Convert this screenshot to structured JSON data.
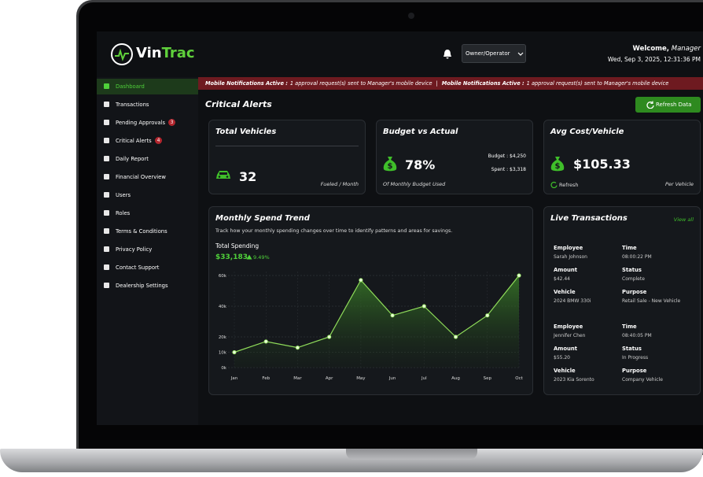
{
  "header": {
    "brand_first": "Vin",
    "brand_second": "Trac",
    "role_select": "Owner/Operator",
    "welcome": "Welcome,",
    "user_role": "Manager",
    "datetime": "Wed, Sep 3, 2025, 12:31:36 PM"
  },
  "sidebar": {
    "items": [
      {
        "label": "Dashboard"
      },
      {
        "label": "Transactions"
      },
      {
        "label": "Pending Approvals",
        "badge": 3
      },
      {
        "label": "Critical Alerts",
        "badge": 4
      },
      {
        "label": "Daily Report"
      },
      {
        "label": "Financial Overview"
      },
      {
        "label": "Users"
      },
      {
        "label": "Roles"
      },
      {
        "label": "Terms & Conditions"
      },
      {
        "label": "Privacy Policy"
      },
      {
        "label": "Contact Support"
      },
      {
        "label": "Dealership Settings"
      }
    ]
  },
  "notification": {
    "items": [
      {
        "label": "Mobile Notifications Active :",
        "message": "1 approval request(s) sent to Manager's mobile device"
      },
      {
        "label": "Mobile Notifications Active :",
        "message": "1 approval request(s) sent to Manager's mobile device"
      }
    ],
    "separator": "|"
  },
  "page_title": "Critical Alerts",
  "refresh_button": "Refresh Data",
  "cards": {
    "total_vehicles": {
      "title": "Total Vehicles",
      "value": "32",
      "note": "Fueled  / Month"
    },
    "budget": {
      "title": "Budget vs Actual",
      "value": "78%",
      "note": "Of Monthly Budget Used",
      "budget": "Budget : $4,250",
      "spent": "Spent : $3,318"
    },
    "avg_cost": {
      "title": "Avg Cost/Vehicle",
      "value": "$105.33",
      "refresh": "Refresh",
      "note": "Per Vehicle"
    }
  },
  "spend_trend": {
    "type": "line",
    "title": "Monthly Spend Trend",
    "subtitle": "Track how your monthly spending changes over time to identify patterns and areas for savings.",
    "total_label": "Total Spending",
    "total": "$33,183",
    "change": "9.49%",
    "categories": [
      "Jan",
      "Feb",
      "Mar",
      "Apr",
      "May",
      "Jun",
      "Jul",
      "Aug",
      "Sep",
      "Oct"
    ],
    "values": [
      10000,
      17000,
      13000,
      20000,
      57000,
      34000,
      40000,
      20000,
      34000,
      60000
    ],
    "color": "#8fdc5a",
    "ylim": [
      0,
      60000
    ],
    "yticks": [
      {
        "value": 0,
        "label": "0k"
      },
      {
        "value": 10000,
        "label": "10k"
      },
      {
        "value": 20000,
        "label": "20k"
      },
      {
        "value": 40000,
        "label": "40k"
      },
      {
        "value": 60000,
        "label": "60k"
      }
    ],
    "grid": true
  },
  "live_transactions": {
    "title": "Live Transactions",
    "view_all": "View all",
    "items": [
      {
        "fields": [
          {
            "label": "Employee",
            "value": "Sarah Johnson"
          },
          {
            "label": "Time",
            "value": "08:00:22 PM"
          },
          {
            "label": "Amount",
            "value": "$42.44"
          },
          {
            "label": "Status",
            "value": "Complete"
          },
          {
            "label": "Vehicle",
            "value": "2024 BMW 330i"
          },
          {
            "label": "Purpose",
            "value": "Retail Sale - New Vehicle"
          }
        ]
      },
      {
        "fields": [
          {
            "label": "Employee",
            "value": "Jennifer Chen"
          },
          {
            "label": "Time",
            "value": "08:40:05 PM"
          },
          {
            "label": "Amount",
            "value": "$55.20"
          },
          {
            "label": "Status",
            "value": "In Progress"
          },
          {
            "label": "Vehicle",
            "value": "2023 Kia Sorento"
          },
          {
            "label": "Purpose",
            "value": "Company Vehicle"
          }
        ]
      }
    ]
  }
}
